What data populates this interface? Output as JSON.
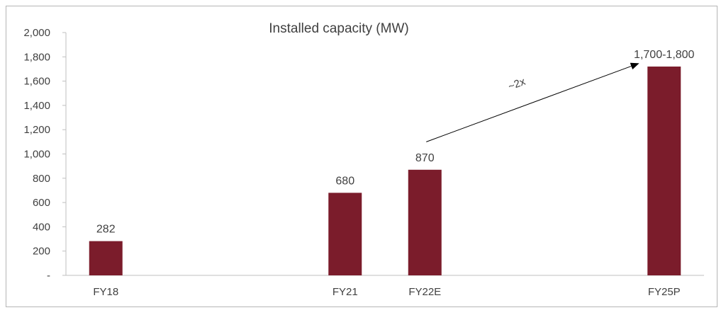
{
  "chart_data": {
    "type": "bar",
    "title": "Installed capacity (MW)",
    "xlabel": "",
    "ylabel": "",
    "categories": [
      "FY18",
      "",
      "",
      "FY21",
      "FY22E",
      "",
      "",
      "FY25P"
    ],
    "values": [
      282,
      null,
      null,
      680,
      870,
      null,
      null,
      1720
    ],
    "data_labels": [
      "282",
      "",
      "",
      "680",
      "870",
      "",
      "",
      "1,700-1,800"
    ],
    "ylim": [
      0,
      2000
    ],
    "y_ticks": [
      0,
      200,
      400,
      600,
      800,
      1000,
      1200,
      1400,
      1600,
      1800,
      2000
    ],
    "y_tick_labels": [
      "-",
      "200",
      "400",
      "600",
      "800",
      "1,000",
      "1,200",
      "1,400",
      "1,600",
      "1,800",
      "2,000"
    ],
    "grid": false,
    "legend": "none",
    "bar_color": "#7b1c2b",
    "annotation": {
      "text": "~2x",
      "arrow_from": {
        "category": "FY22E",
        "value": 1100
      },
      "arrow_to": {
        "category": "FY25P",
        "value": 1720
      }
    }
  }
}
